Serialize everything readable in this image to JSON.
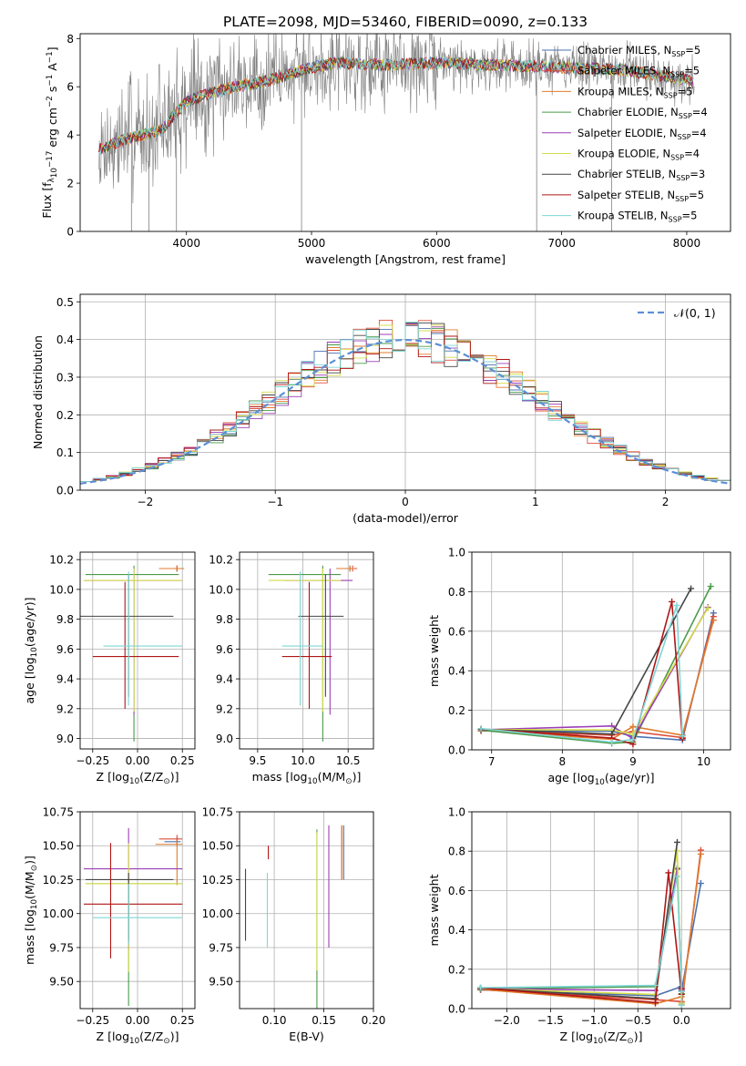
{
  "figure_title": "PLATE=2098, MJD=53460, FIBERID=0090, z=0.133",
  "models": [
    {
      "name": "Chabrier MILES",
      "nssp": "5",
      "color": "#4c72b0"
    },
    {
      "name": "Salpeter MILES",
      "nssp": "5",
      "color": "#dd4e3c"
    },
    {
      "name": "Kroupa MILES",
      "nssp": "5",
      "color": "#e07b2d"
    },
    {
      "name": "Chabrier ELODIE",
      "nssp": "4",
      "color": "#4a9a4a"
    },
    {
      "name": "Salpeter ELODIE",
      "nssp": "4",
      "color": "#9b3fb5"
    },
    {
      "name": "Kroupa ELODIE",
      "nssp": "4",
      "color": "#d6dc4a"
    },
    {
      "name": "Chabrier STELIB",
      "nssp": "3",
      "color": "#454545"
    },
    {
      "name": "Salpeter STELIB",
      "nssp": "5",
      "color": "#b01515"
    },
    {
      "name": "Kroupa STELIB",
      "nssp": "5",
      "color": "#7fd6d6"
    }
  ],
  "chart_data": [
    {
      "id": "spectrum",
      "type": "line",
      "title": "PLATE=2098, MJD=53460, FIBERID=0090, z=0.133",
      "xlabel": "wavelength [Angstrom, rest frame]",
      "ylabel_parts": [
        "Flux [f",
        "λ",
        "10",
        "−17",
        " erg cm",
        "−2",
        " s",
        "−1",
        " A",
        "−1",
        "]"
      ],
      "xlim": [
        3150,
        8350
      ],
      "ylim": [
        0,
        8.2
      ],
      "xticks": [
        4000,
        5000,
        6000,
        7000,
        8000
      ],
      "yticks": [
        0,
        2,
        4,
        6,
        8
      ],
      "continuum": [
        [
          3300,
          3.4
        ],
        [
          3500,
          3.8
        ],
        [
          3800,
          4.2
        ],
        [
          4000,
          5.4
        ],
        [
          4300,
          5.9
        ],
        [
          4600,
          6.2
        ],
        [
          5000,
          6.8
        ],
        [
          5200,
          7.0
        ],
        [
          5600,
          6.9
        ],
        [
          6000,
          7.0
        ],
        [
          6500,
          6.9
        ],
        [
          7000,
          6.8
        ],
        [
          7500,
          6.7
        ],
        [
          8000,
          6.3
        ],
        [
          8060,
          6.1
        ]
      ],
      "data_spikes_down": [
        3560,
        3700,
        3920,
        4920,
        6800,
        7400
      ],
      "grid": false,
      "legend_position": "upper-right"
    },
    {
      "id": "residuals",
      "type": "line",
      "xlabel": "(data-model)/error",
      "ylabel": "Normed distribution",
      "xlim": [
        -2.5,
        2.5
      ],
      "ylim": [
        0,
        0.52
      ],
      "xticks": [
        -2,
        -1,
        0,
        1,
        2
      ],
      "yticks": [
        0,
        0.1,
        0.2,
        0.3,
        0.4,
        0.5
      ],
      "reference_label": "𝒩(0, 1)",
      "bin_width": 0.1,
      "grid": true,
      "legend_position": "upper-right"
    },
    {
      "id": "age_vs_Z",
      "type": "scatter",
      "xlabel_parts": [
        "Z [log",
        "10",
        "(Z/Z",
        "⊙",
        ")]"
      ],
      "ylabel_parts": [
        "age  [log",
        "10",
        "(age/yr)]"
      ],
      "xlim": [
        -0.32,
        0.32
      ],
      "ylim": [
        8.93,
        10.25
      ],
      "xticks": [
        -0.25,
        0,
        0.25
      ],
      "yticks": [
        9.0,
        9.2,
        9.4,
        9.6,
        9.8,
        10.0,
        10.2
      ],
      "points": [
        {
          "model": 0,
          "x": 0.22,
          "y": 10.14,
          "xerr": [
            0.07,
            0.02
          ],
          "yerr": [
            0.02,
            0.02
          ]
        },
        {
          "model": 1,
          "x": 0.22,
          "y": 10.14,
          "xerr": [
            0.1,
            0.03
          ],
          "yerr": [
            0.02,
            0.02
          ]
        },
        {
          "model": 2,
          "x": 0.22,
          "y": 10.14,
          "xerr": [
            0.1,
            0.04
          ],
          "yerr": [
            0.02,
            0.02
          ]
        },
        {
          "model": 3,
          "x": -0.02,
          "y": 10.1,
          "xerr": [
            0.27,
            0.25
          ],
          "yerr": [
            1.12,
            0.06
          ]
        },
        {
          "model": 4,
          "x": -0.02,
          "y": 10.06,
          "xerr": [
            0.28,
            0.27
          ],
          "yerr": [
            0.9,
            0.08
          ]
        },
        {
          "model": 5,
          "x": -0.02,
          "y": 10.06,
          "xerr": [
            0.28,
            0.27
          ],
          "yerr": [
            0.88,
            0.08
          ]
        },
        {
          "model": 6,
          "x": -0.05,
          "y": 9.82,
          "xerr": [
            0.27,
            0.25
          ],
          "yerr": [
            0.54,
            0.28
          ]
        },
        {
          "model": 7,
          "x": -0.07,
          "y": 9.55,
          "xerr": [
            0.18,
            0.3
          ],
          "yerr": [
            0.35,
            0.5
          ]
        },
        {
          "model": 8,
          "x": -0.05,
          "y": 9.62,
          "xerr": [
            0.14,
            0.3
          ],
          "yerr": [
            0.4,
            0.5
          ]
        }
      ],
      "grid": true
    },
    {
      "id": "age_vs_mass",
      "type": "scatter",
      "xlabel_parts": [
        "mass [log",
        "10",
        "(M/M",
        "⊙",
        ")]"
      ],
      "ylabel": "",
      "xlim": [
        9.3,
        10.78
      ],
      "ylim": [
        8.93,
        10.25
      ],
      "xticks": [
        9.5,
        10.0,
        10.5
      ],
      "yticks": [
        9.0,
        9.2,
        9.4,
        9.6,
        9.8,
        10.0,
        10.2
      ],
      "points": [
        {
          "model": 0,
          "x": 10.52,
          "y": 10.14,
          "xerr": [
            0.15,
            0.05
          ],
          "yerr": [
            0.02,
            0.02
          ]
        },
        {
          "model": 1,
          "x": 10.55,
          "y": 10.14,
          "xerr": [
            0.15,
            0.05
          ],
          "yerr": [
            0.02,
            0.02
          ]
        },
        {
          "model": 2,
          "x": 10.52,
          "y": 10.14,
          "xerr": [
            0.15,
            0.05
          ],
          "yerr": [
            0.02,
            0.02
          ]
        },
        {
          "model": 3,
          "x": 10.22,
          "y": 10.1,
          "xerr": [
            0.6,
            0.2
          ],
          "yerr": [
            1.12,
            0.06
          ]
        },
        {
          "model": 4,
          "x": 10.3,
          "y": 10.06,
          "xerr": [
            0.5,
            0.25
          ],
          "yerr": [
            0.9,
            0.08
          ]
        },
        {
          "model": 5,
          "x": 10.22,
          "y": 10.06,
          "xerr": [
            0.6,
            0.2
          ],
          "yerr": [
            0.88,
            0.08
          ]
        },
        {
          "model": 6,
          "x": 10.25,
          "y": 9.82,
          "xerr": [
            0.3,
            0.2
          ],
          "yerr": [
            0.54,
            0.28
          ]
        },
        {
          "model": 7,
          "x": 10.07,
          "y": 9.55,
          "xerr": [
            0.3,
            0.25
          ],
          "yerr": [
            0.35,
            0.5
          ]
        },
        {
          "model": 8,
          "x": 9.97,
          "y": 9.62,
          "xerr": [
            0.2,
            0.25
          ],
          "yerr": [
            0.4,
            0.5
          ]
        }
      ],
      "grid": true
    },
    {
      "id": "massweight_vs_age",
      "type": "line",
      "xlabel_parts": [
        "age  [log",
        "10",
        "(age/yr)]"
      ],
      "ylabel": "mass weight",
      "xlim": [
        6.72,
        10.38
      ],
      "ylim": [
        0,
        1
      ],
      "xticks": [
        7,
        8,
        9,
        10
      ],
      "yticks": [
        0.0,
        0.2,
        0.4,
        0.6,
        0.8,
        1.0
      ],
      "grid": true
    },
    {
      "id": "mass_vs_Z",
      "type": "scatter",
      "xlabel_parts": [
        "Z [log",
        "10",
        "(Z/Z",
        "⊙",
        ")]"
      ],
      "ylabel_parts": [
        "mass [log",
        "10",
        "(M/M",
        "⊙",
        ")]"
      ],
      "xlim": [
        -0.32,
        0.32
      ],
      "ylim": [
        9.3,
        10.75
      ],
      "xticks": [
        -0.25,
        0,
        0.25
      ],
      "yticks": [
        9.5,
        9.75,
        10.0,
        10.25,
        10.5,
        10.75
      ],
      "points": [
        {
          "model": 0,
          "x": 0.22,
          "y": 10.53,
          "xerr": [
            0.07,
            0.02
          ],
          "yerr": [
            0.03,
            0.03
          ]
        },
        {
          "model": 1,
          "x": 0.22,
          "y": 10.55,
          "xerr": [
            0.1,
            0.03
          ],
          "yerr": [
            0.03,
            0.03
          ]
        },
        {
          "model": 2,
          "x": 0.22,
          "y": 10.51,
          "xerr": [
            0.12,
            0.03
          ],
          "yerr": [
            0.3,
            0.03
          ]
        },
        {
          "model": 3,
          "x": -0.05,
          "y": 10.22,
          "xerr": [
            0.24,
            0.3
          ],
          "yerr": [
            0.9,
            0.05
          ]
        },
        {
          "model": 4,
          "x": -0.05,
          "y": 10.33,
          "xerr": [
            0.25,
            0.3
          ],
          "yerr": [
            0.6,
            0.3
          ]
        },
        {
          "model": 5,
          "x": -0.05,
          "y": 10.22,
          "xerr": [
            0.24,
            0.3
          ],
          "yerr": [
            0.65,
            0.3
          ]
        },
        {
          "model": 6,
          "x": -0.05,
          "y": 10.25,
          "xerr": [
            0.24,
            0.25
          ],
          "yerr": [
            0.45,
            0.05
          ]
        },
        {
          "model": 7,
          "x": -0.15,
          "y": 10.07,
          "xerr": [
            0.15,
            0.4
          ],
          "yerr": [
            0.4,
            0.45
          ]
        },
        {
          "model": 8,
          "x": -0.05,
          "y": 9.97,
          "xerr": [
            0.2,
            0.3
          ],
          "yerr": [
            0.2,
            0.25
          ]
        }
      ],
      "grid": true
    },
    {
      "id": "mass_vs_ebv",
      "type": "scatter",
      "xlabel": "E(B-V)",
      "ylabel": "",
      "xlim": [
        0.065,
        0.2
      ],
      "ylim": [
        9.3,
        10.75
      ],
      "xticks": [
        0.1,
        0.15,
        0.2
      ],
      "yticks": [
        9.5,
        9.75,
        10.0,
        10.25,
        10.5,
        10.75
      ],
      "points": [
        {
          "model": 0,
          "x": 0.17,
          "y": 10.45,
          "yerr": [
            0.2,
            0.2
          ]
        },
        {
          "model": 1,
          "x": 0.168,
          "y": 10.45,
          "yerr": [
            0.2,
            0.2
          ]
        },
        {
          "model": 2,
          "x": 0.168,
          "y": 10.45,
          "yerr": [
            0.2,
            0.2
          ]
        },
        {
          "model": 3,
          "x": 0.143,
          "y": 10.2,
          "yerr": [
            0.9,
            0.42
          ]
        },
        {
          "model": 4,
          "x": 0.155,
          "y": 10.3,
          "yerr": [
            0.55,
            0.35
          ]
        },
        {
          "model": 5,
          "x": 0.143,
          "y": 10.2,
          "yerr": [
            0.62,
            0.4
          ]
        },
        {
          "model": 6,
          "x": 0.071,
          "y": 10.05,
          "yerr": [
            0.25,
            0.28
          ]
        },
        {
          "model": 7,
          "x": 0.094,
          "y": 10.45,
          "yerr": [
            0.05,
            0.05
          ]
        },
        {
          "model": 8,
          "x": 0.093,
          "y": 10.05,
          "yerr": [
            0.3,
            0.25
          ]
        }
      ],
      "grid": true
    },
    {
      "id": "massweight_vs_Z",
      "type": "line",
      "xlabel_parts": [
        "Z [log",
        "10",
        "(Z/Z",
        "⊙",
        ")]"
      ],
      "ylabel": "mass weight",
      "xlim": [
        -2.4,
        0.56
      ],
      "ylim": [
        0,
        1
      ],
      "xticks": [
        -2.0,
        -1.5,
        -1.0,
        -0.5,
        0.0
      ],
      "yticks": [
        0.0,
        0.2,
        0.4,
        0.6,
        0.8,
        1.0
      ],
      "grid": true
    }
  ]
}
